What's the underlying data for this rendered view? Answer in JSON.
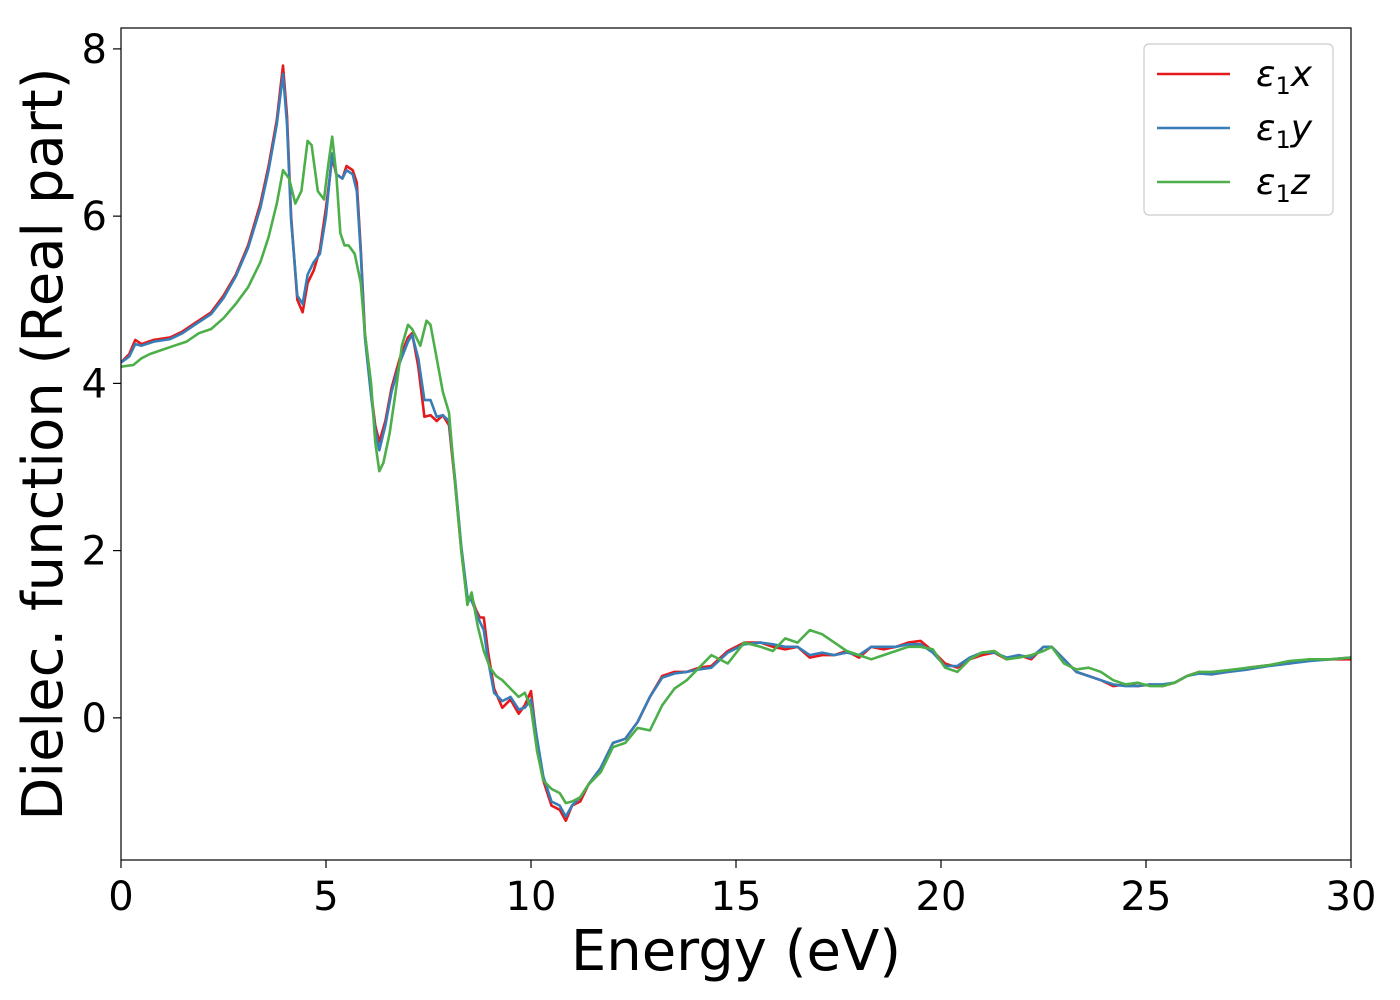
{
  "chart_data": {
    "type": "line",
    "title": "",
    "xlabel": "Energy (eV)",
    "ylabel": "Dielec. function (Real part)",
    "xlim": [
      0,
      30
    ],
    "ylim": [
      -1.7,
      8.25
    ],
    "xticks": [
      0,
      5,
      10,
      15,
      20,
      25,
      30
    ],
    "yticks": [
      0,
      2,
      4,
      6,
      8
    ],
    "grid": false,
    "legend_position": "top-right",
    "series": [
      {
        "name": "ε₁x",
        "legend": {
          "base": "ε",
          "sub": "1",
          "var": "x"
        },
        "color": "#e41a1c",
        "x": [
          0,
          0.2,
          0.35,
          0.5,
          0.8,
          1.2,
          1.5,
          1.8,
          2.2,
          2.5,
          2.8,
          3.1,
          3.4,
          3.6,
          3.8,
          3.95,
          4.05,
          4.15,
          4.3,
          4.43,
          4.55,
          4.7,
          4.85,
          5.0,
          5.15,
          5.25,
          5.4,
          5.5,
          5.65,
          5.75,
          5.85,
          5.95,
          6.1,
          6.2,
          6.3,
          6.45,
          6.6,
          6.8,
          7.0,
          7.1,
          7.25,
          7.4,
          7.55,
          7.7,
          7.85,
          8.0,
          8.15,
          8.3,
          8.45,
          8.55,
          8.65,
          8.75,
          8.85,
          8.95,
          9.1,
          9.3,
          9.5,
          9.7,
          9.85,
          10.0,
          10.15,
          10.3,
          10.5,
          10.7,
          10.85,
          11.0,
          11.2,
          11.4,
          11.7,
          12.0,
          12.3,
          12.6,
          12.9,
          13.2,
          13.5,
          13.8,
          14.1,
          14.4,
          14.8,
          15.2,
          15.6,
          15.9,
          16.2,
          16.5,
          16.8,
          17.1,
          17.4,
          17.7,
          18.0,
          18.3,
          18.6,
          18.9,
          19.2,
          19.5,
          19.8,
          20.1,
          20.4,
          20.7,
          21.0,
          21.3,
          21.6,
          21.9,
          22.2,
          22.5,
          22.7,
          23.0,
          23.3,
          23.6,
          23.9,
          24.2,
          24.5,
          24.8,
          25.1,
          25.4,
          25.7,
          26.0,
          26.3,
          26.6,
          27.0,
          27.5,
          28.0,
          28.5,
          29.0,
          29.5,
          30.0
        ],
        "y": [
          4.25,
          4.35,
          4.52,
          4.47,
          4.52,
          4.55,
          4.62,
          4.72,
          4.85,
          5.05,
          5.3,
          5.65,
          6.15,
          6.6,
          7.15,
          7.8,
          7.2,
          6.0,
          5.0,
          4.85,
          5.2,
          5.35,
          5.6,
          6.1,
          6.7,
          6.5,
          6.45,
          6.6,
          6.55,
          6.4,
          5.6,
          4.6,
          3.9,
          3.5,
          3.3,
          3.55,
          3.95,
          4.3,
          4.55,
          4.6,
          4.2,
          3.6,
          3.62,
          3.55,
          3.62,
          3.5,
          2.8,
          2.0,
          1.4,
          1.45,
          1.3,
          1.2,
          1.2,
          0.8,
          0.35,
          0.12,
          0.22,
          0.05,
          0.15,
          0.32,
          -0.3,
          -0.75,
          -1.05,
          -1.1,
          -1.23,
          -1.05,
          -1.0,
          -0.8,
          -0.6,
          -0.3,
          -0.25,
          -0.05,
          0.25,
          0.5,
          0.55,
          0.55,
          0.6,
          0.62,
          0.8,
          0.9,
          0.9,
          0.85,
          0.82,
          0.85,
          0.72,
          0.75,
          0.75,
          0.8,
          0.72,
          0.85,
          0.82,
          0.85,
          0.9,
          0.92,
          0.8,
          0.65,
          0.6,
          0.7,
          0.75,
          0.78,
          0.7,
          0.75,
          0.7,
          0.85,
          0.85,
          0.7,
          0.55,
          0.5,
          0.45,
          0.38,
          0.4,
          0.38,
          0.4,
          0.38,
          0.42,
          0.5,
          0.55,
          0.52,
          0.55,
          0.6,
          0.63,
          0.65,
          0.7,
          0.7,
          0.7
        ]
      },
      {
        "name": "ε₁y",
        "legend": {
          "base": "ε",
          "sub": "1",
          "var": "y"
        },
        "color": "#377eb8",
        "x": [
          0,
          0.2,
          0.35,
          0.5,
          0.8,
          1.2,
          1.5,
          1.8,
          2.2,
          2.5,
          2.8,
          3.1,
          3.4,
          3.6,
          3.8,
          3.95,
          4.05,
          4.15,
          4.3,
          4.43,
          4.55,
          4.7,
          4.85,
          5.0,
          5.15,
          5.25,
          5.4,
          5.5,
          5.65,
          5.75,
          5.85,
          5.95,
          6.1,
          6.2,
          6.3,
          6.45,
          6.6,
          6.8,
          7.0,
          7.1,
          7.25,
          7.4,
          7.55,
          7.7,
          7.85,
          8.0,
          8.15,
          8.3,
          8.45,
          8.55,
          8.65,
          8.75,
          8.85,
          8.95,
          9.1,
          9.3,
          9.5,
          9.7,
          9.85,
          10.0,
          10.15,
          10.3,
          10.5,
          10.7,
          10.85,
          11.0,
          11.2,
          11.4,
          11.7,
          12.0,
          12.3,
          12.6,
          12.9,
          13.2,
          13.5,
          13.8,
          14.1,
          14.4,
          14.8,
          15.2,
          15.6,
          15.9,
          16.2,
          16.5,
          16.8,
          17.1,
          17.4,
          17.7,
          18.0,
          18.3,
          18.6,
          18.9,
          19.2,
          19.5,
          19.8,
          20.1,
          20.4,
          20.7,
          21.0,
          21.3,
          21.6,
          21.9,
          22.2,
          22.5,
          22.7,
          23.0,
          23.3,
          23.6,
          23.9,
          24.2,
          24.5,
          24.8,
          25.1,
          25.4,
          25.7,
          26.0,
          26.3,
          26.6,
          27.0,
          27.5,
          28.0,
          28.5,
          29.0,
          29.5,
          30.0
        ],
        "y": [
          4.25,
          4.32,
          4.47,
          4.45,
          4.5,
          4.53,
          4.6,
          4.7,
          4.83,
          5.02,
          5.28,
          5.62,
          6.1,
          6.55,
          7.1,
          7.7,
          7.1,
          5.95,
          5.05,
          4.95,
          5.3,
          5.45,
          5.55,
          6.0,
          6.75,
          6.5,
          6.45,
          6.55,
          6.5,
          6.3,
          5.55,
          4.55,
          3.85,
          3.45,
          3.2,
          3.5,
          3.9,
          4.25,
          4.5,
          4.58,
          4.3,
          3.8,
          3.8,
          3.6,
          3.62,
          3.55,
          2.85,
          2.05,
          1.45,
          1.4,
          1.28,
          1.15,
          1.05,
          0.7,
          0.3,
          0.2,
          0.25,
          0.1,
          0.12,
          0.22,
          -0.25,
          -0.7,
          -1.0,
          -1.05,
          -1.18,
          -1.05,
          -0.95,
          -0.8,
          -0.6,
          -0.3,
          -0.25,
          -0.05,
          0.25,
          0.48,
          0.53,
          0.55,
          0.58,
          0.6,
          0.78,
          0.88,
          0.9,
          0.88,
          0.85,
          0.85,
          0.75,
          0.78,
          0.75,
          0.78,
          0.75,
          0.85,
          0.85,
          0.85,
          0.88,
          0.88,
          0.78,
          0.62,
          0.62,
          0.72,
          0.78,
          0.78,
          0.72,
          0.75,
          0.72,
          0.85,
          0.85,
          0.7,
          0.55,
          0.5,
          0.45,
          0.4,
          0.38,
          0.38,
          0.4,
          0.4,
          0.42,
          0.5,
          0.53,
          0.52,
          0.55,
          0.58,
          0.62,
          0.65,
          0.68,
          0.7,
          0.72
        ]
      },
      {
        "name": "ε₁z",
        "legend": {
          "base": "ε",
          "sub": "1",
          "var": "z"
        },
        "color": "#4daf4a",
        "x": [
          0,
          0.3,
          0.5,
          0.7,
          1.0,
          1.3,
          1.6,
          1.9,
          2.2,
          2.5,
          2.8,
          3.1,
          3.4,
          3.6,
          3.8,
          3.95,
          4.1,
          4.25,
          4.4,
          4.55,
          4.65,
          4.8,
          4.95,
          5.05,
          5.15,
          5.25,
          5.35,
          5.45,
          5.55,
          5.7,
          5.85,
          5.95,
          6.1,
          6.2,
          6.3,
          6.4,
          6.55,
          6.7,
          6.85,
          7.0,
          7.1,
          7.3,
          7.45,
          7.55,
          7.7,
          7.85,
          8.0,
          8.15,
          8.3,
          8.45,
          8.55,
          8.7,
          8.85,
          9.0,
          9.15,
          9.3,
          9.5,
          9.7,
          9.85,
          10.0,
          10.15,
          10.3,
          10.5,
          10.7,
          10.85,
          11.0,
          11.2,
          11.4,
          11.7,
          12.0,
          12.3,
          12.6,
          12.9,
          13.2,
          13.5,
          13.8,
          14.1,
          14.4,
          14.8,
          15.2,
          15.6,
          15.9,
          16.2,
          16.5,
          16.8,
          17.1,
          17.4,
          17.7,
          18.0,
          18.3,
          18.6,
          18.9,
          19.2,
          19.5,
          19.8,
          20.1,
          20.4,
          20.7,
          21.0,
          21.3,
          21.6,
          21.9,
          22.2,
          22.5,
          22.7,
          23.0,
          23.3,
          23.6,
          23.9,
          24.2,
          24.5,
          24.8,
          25.1,
          25.4,
          25.7,
          26.0,
          26.3,
          26.6,
          27.0,
          27.5,
          28.0,
          28.5,
          29.0,
          29.5,
          30.0
        ],
        "y": [
          4.2,
          4.22,
          4.3,
          4.35,
          4.4,
          4.45,
          4.5,
          4.6,
          4.65,
          4.78,
          4.95,
          5.15,
          5.45,
          5.75,
          6.15,
          6.55,
          6.45,
          6.15,
          6.3,
          6.9,
          6.85,
          6.3,
          6.2,
          6.6,
          6.95,
          6.5,
          5.8,
          5.65,
          5.65,
          5.55,
          5.2,
          4.6,
          4.0,
          3.3,
          2.95,
          3.05,
          3.4,
          3.9,
          4.45,
          4.7,
          4.65,
          4.45,
          4.75,
          4.7,
          4.3,
          3.9,
          3.65,
          2.8,
          2.0,
          1.35,
          1.5,
          1.1,
          0.8,
          0.6,
          0.5,
          0.45,
          0.35,
          0.25,
          0.3,
          0.12,
          -0.4,
          -0.75,
          -0.85,
          -0.9,
          -1.02,
          -1.0,
          -0.95,
          -0.8,
          -0.65,
          -0.35,
          -0.3,
          -0.12,
          -0.15,
          0.15,
          0.35,
          0.45,
          0.6,
          0.75,
          0.65,
          0.9,
          0.85,
          0.8,
          0.95,
          0.9,
          1.05,
          1.0,
          0.9,
          0.8,
          0.75,
          0.7,
          0.75,
          0.8,
          0.85,
          0.85,
          0.82,
          0.6,
          0.55,
          0.7,
          0.78,
          0.8,
          0.7,
          0.72,
          0.75,
          0.8,
          0.85,
          0.65,
          0.58,
          0.6,
          0.55,
          0.45,
          0.4,
          0.42,
          0.38,
          0.38,
          0.42,
          0.5,
          0.55,
          0.55,
          0.57,
          0.6,
          0.63,
          0.68,
          0.7,
          0.7,
          0.72
        ]
      }
    ]
  }
}
